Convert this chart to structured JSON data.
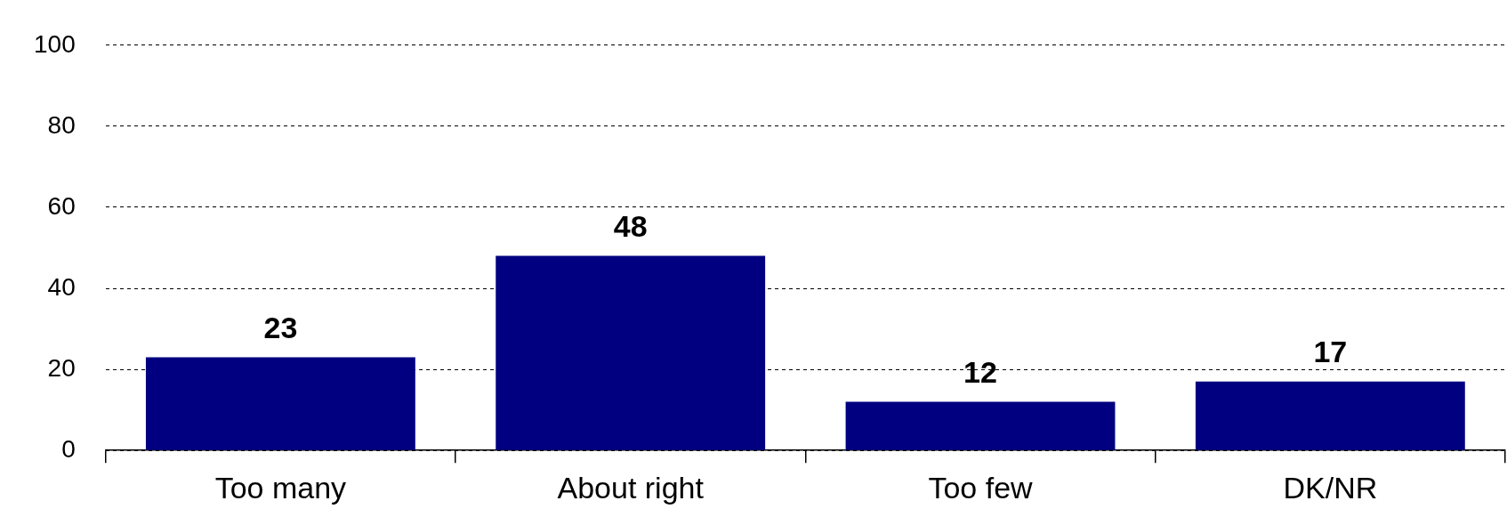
{
  "chart_data": {
    "type": "bar",
    "categories": [
      "Too many",
      "About right",
      "Too few",
      "DK/NR"
    ],
    "values": [
      23,
      48,
      12,
      17
    ],
    "color": "#000080",
    "ylim": [
      0,
      100
    ],
    "yticks": [
      0,
      20,
      40,
      60,
      80,
      100
    ],
    "grid": "y",
    "data_labels": true,
    "legend": false
  }
}
